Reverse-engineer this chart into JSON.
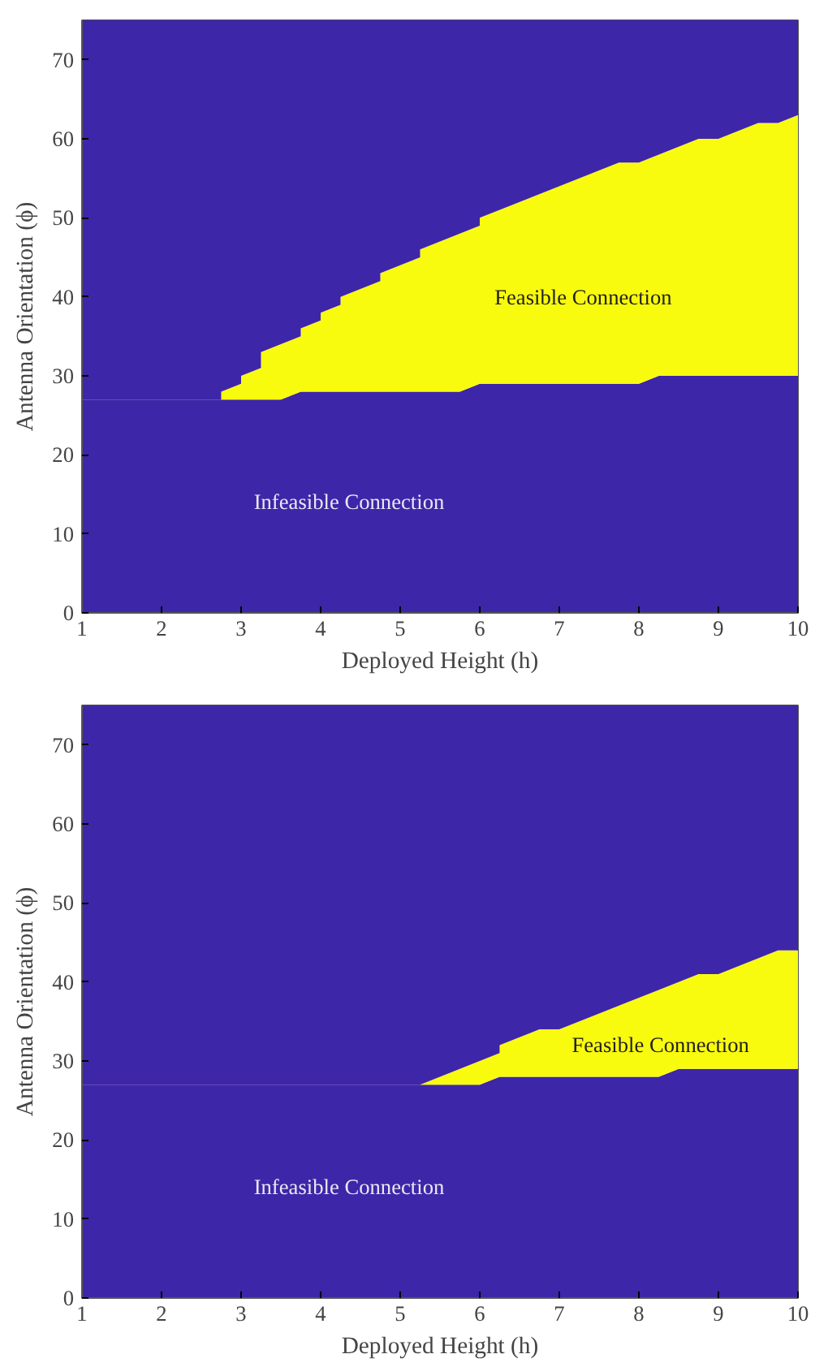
{
  "chart_data": [
    {
      "type": "area",
      "stacked": true,
      "xlabel": "Deployed Height (h)",
      "ylabel": "Antenna Orientation (ϕ)",
      "xlim": [
        1,
        10
      ],
      "ylim": [
        0,
        75
      ],
      "xticks": [
        1,
        2,
        3,
        4,
        5,
        6,
        7,
        8,
        9,
        10
      ],
      "yticks": [
        0,
        10,
        20,
        30,
        40,
        50,
        60,
        70
      ],
      "x": [
        1,
        2.75,
        2.75,
        3,
        3,
        3.25,
        3.25,
        3.5,
        3.75,
        3.75,
        4,
        4,
        4.25,
        4.25,
        4.75,
        4.75,
        5.25,
        5.25,
        5.75,
        6,
        6,
        7.75,
        8,
        8.25,
        8.75,
        9,
        9.5,
        9.75,
        10
      ],
      "series": [
        {
          "color": "#3e26a8",
          "values": [
            27,
            27,
            27,
            27,
            27,
            27,
            27,
            27,
            28,
            28,
            28,
            28,
            28,
            28,
            28,
            28,
            28,
            28,
            28,
            29,
            29,
            29,
            29,
            30,
            30,
            30,
            30,
            30,
            30
          ]
        },
        {
          "color": "#f9fb0e",
          "values": [
            0,
            0,
            1,
            2,
            3,
            4,
            6,
            7,
            7,
            8,
            9,
            10,
            11,
            12,
            14,
            15,
            17,
            18,
            20,
            20,
            21,
            28,
            28,
            28,
            30,
            30,
            32,
            32,
            33
          ]
        },
        {
          "color": "#3e26a8",
          "values": [
            48,
            48,
            47,
            46,
            45,
            44,
            42,
            41,
            40,
            39,
            38,
            37,
            36,
            35,
            33,
            32,
            30,
            29,
            27,
            26,
            25,
            18,
            18,
            17,
            15,
            15,
            13,
            13,
            12
          ]
        }
      ],
      "annotations": [
        "Feasible Connection",
        "Infeasible Connection"
      ]
    },
    {
      "type": "area",
      "stacked": true,
      "xlabel": "Deployed Height (h)",
      "ylabel": "Antenna Orientation (ϕ)",
      "xlim": [
        1,
        10
      ],
      "ylim": [
        0,
        75
      ],
      "xticks": [
        1,
        2,
        3,
        4,
        5,
        6,
        7,
        8,
        9,
        10
      ],
      "yticks": [
        0,
        10,
        20,
        30,
        40,
        50,
        60,
        70
      ],
      "x": [
        1,
        5.25,
        6,
        6.25,
        6.25,
        6.75,
        7,
        8.25,
        8.5,
        8.75,
        9,
        9.75,
        10
      ],
      "series": [
        {
          "color": "#3e26a8",
          "values": [
            27,
            27,
            27,
            28,
            28,
            28,
            28,
            28,
            29,
            29,
            29,
            29,
            29
          ]
        },
        {
          "color": "#f9fb0e",
          "values": [
            0,
            0,
            3,
            3,
            4,
            6,
            6,
            11,
            11,
            12,
            12,
            15,
            15
          ]
        },
        {
          "color": "#3e26a8",
          "values": [
            48,
            48,
            45,
            44,
            43,
            41,
            41,
            36,
            35,
            34,
            34,
            31,
            31
          ]
        }
      ],
      "annotations": [
        "Feasible Connection",
        "Infeasible Connection"
      ]
    }
  ]
}
